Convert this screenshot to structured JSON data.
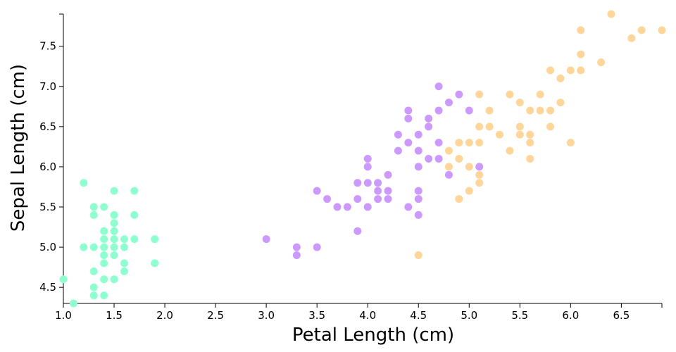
{
  "chart_data": {
    "type": "scatter",
    "xlabel": "Petal Length (cm)",
    "ylabel": "Sepal Length (cm)",
    "xlim": [
      1.0,
      6.9
    ],
    "ylim": [
      4.3,
      7.9
    ],
    "x_ticks": [
      "1.0",
      "1.5",
      "2.0",
      "2.5",
      "3.0",
      "3.5",
      "4.0",
      "4.5",
      "5.0",
      "5.5",
      "6.0",
      "6.5"
    ],
    "y_ticks": [
      "4.5",
      "5.0",
      "5.5",
      "6.0",
      "6.5",
      "7.0",
      "7.5"
    ],
    "grid": false,
    "legend": "none",
    "colors": [
      "#8fffd0",
      "#cc99ff",
      "#ffd699"
    ],
    "series": [
      {
        "color": "#8fffd0",
        "points": [
          [
            1.0,
            4.6
          ],
          [
            1.1,
            4.3
          ],
          [
            1.2,
            5.8
          ],
          [
            1.2,
            5.0
          ],
          [
            1.3,
            5.5
          ],
          [
            1.3,
            5.4
          ],
          [
            1.3,
            5.0
          ],
          [
            1.3,
            4.7
          ],
          [
            1.3,
            4.5
          ],
          [
            1.3,
            4.4
          ],
          [
            1.4,
            5.5
          ],
          [
            1.4,
            5.2
          ],
          [
            1.4,
            5.1
          ],
          [
            1.4,
            5.0
          ],
          [
            1.4,
            4.9
          ],
          [
            1.4,
            4.8
          ],
          [
            1.4,
            4.6
          ],
          [
            1.4,
            4.4
          ],
          [
            1.5,
            5.7
          ],
          [
            1.5,
            5.4
          ],
          [
            1.5,
            5.3
          ],
          [
            1.5,
            5.2
          ],
          [
            1.5,
            5.1
          ],
          [
            1.5,
            5.0
          ],
          [
            1.5,
            4.9
          ],
          [
            1.5,
            4.6
          ],
          [
            1.6,
            5.1
          ],
          [
            1.6,
            5.0
          ],
          [
            1.6,
            4.8
          ],
          [
            1.6,
            4.7
          ],
          [
            1.7,
            5.7
          ],
          [
            1.7,
            5.4
          ],
          [
            1.7,
            5.1
          ],
          [
            1.9,
            5.1
          ],
          [
            1.9,
            4.8
          ]
        ]
      },
      {
        "color": "#cc99ff",
        "points": [
          [
            3.0,
            5.1
          ],
          [
            3.3,
            5.0
          ],
          [
            3.3,
            4.9
          ],
          [
            3.5,
            5.7
          ],
          [
            3.5,
            5.0
          ],
          [
            3.6,
            5.6
          ],
          [
            3.7,
            5.5
          ],
          [
            3.8,
            5.5
          ],
          [
            3.9,
            5.8
          ],
          [
            3.9,
            5.6
          ],
          [
            3.9,
            5.2
          ],
          [
            4.0,
            6.1
          ],
          [
            4.0,
            6.0
          ],
          [
            4.0,
            5.8
          ],
          [
            4.0,
            5.5
          ],
          [
            4.1,
            5.8
          ],
          [
            4.1,
            5.7
          ],
          [
            4.1,
            5.6
          ],
          [
            4.2,
            5.9
          ],
          [
            4.2,
            5.7
          ],
          [
            4.2,
            5.6
          ],
          [
            4.3,
            6.4
          ],
          [
            4.3,
            6.2
          ],
          [
            4.4,
            6.7
          ],
          [
            4.4,
            6.6
          ],
          [
            4.4,
            6.3
          ],
          [
            4.4,
            5.5
          ],
          [
            4.5,
            6.4
          ],
          [
            4.5,
            6.2
          ],
          [
            4.5,
            6.0
          ],
          [
            4.5,
            5.7
          ],
          [
            4.5,
            5.6
          ],
          [
            4.5,
            5.4
          ],
          [
            4.6,
            6.6
          ],
          [
            4.6,
            6.5
          ],
          [
            4.6,
            6.1
          ],
          [
            4.7,
            7.0
          ],
          [
            4.7,
            6.7
          ],
          [
            4.7,
            6.3
          ],
          [
            4.7,
            6.1
          ],
          [
            4.8,
            6.8
          ],
          [
            4.8,
            5.9
          ],
          [
            4.9,
            6.9
          ],
          [
            5.0,
            6.7
          ],
          [
            5.1,
            6.0
          ]
        ]
      },
      {
        "color": "#ffd699",
        "points": [
          [
            4.5,
            4.9
          ],
          [
            4.8,
            6.2
          ],
          [
            4.8,
            6.0
          ],
          [
            4.9,
            6.3
          ],
          [
            4.9,
            6.1
          ],
          [
            4.9,
            5.6
          ],
          [
            5.0,
            6.3
          ],
          [
            5.0,
            6.0
          ],
          [
            5.0,
            5.7
          ],
          [
            5.1,
            6.9
          ],
          [
            5.1,
            6.5
          ],
          [
            5.1,
            6.3
          ],
          [
            5.1,
            5.9
          ],
          [
            5.1,
            5.8
          ],
          [
            5.2,
            6.7
          ],
          [
            5.2,
            6.5
          ],
          [
            5.3,
            6.4
          ],
          [
            5.4,
            6.9
          ],
          [
            5.4,
            6.2
          ],
          [
            5.5,
            6.8
          ],
          [
            5.5,
            6.5
          ],
          [
            5.5,
            6.4
          ],
          [
            5.6,
            6.7
          ],
          [
            5.6,
            6.4
          ],
          [
            5.6,
            6.3
          ],
          [
            5.6,
            6.1
          ],
          [
            5.7,
            6.9
          ],
          [
            5.7,
            6.7
          ],
          [
            5.8,
            7.2
          ],
          [
            5.8,
            6.7
          ],
          [
            5.8,
            6.5
          ],
          [
            5.9,
            7.1
          ],
          [
            5.9,
            6.8
          ],
          [
            6.0,
            7.2
          ],
          [
            6.0,
            6.3
          ],
          [
            6.1,
            7.7
          ],
          [
            6.1,
            7.4
          ],
          [
            6.1,
            7.2
          ],
          [
            6.3,
            7.3
          ],
          [
            6.4,
            7.9
          ],
          [
            6.6,
            7.6
          ],
          [
            6.7,
            7.7
          ],
          [
            6.9,
            7.7
          ]
        ]
      }
    ]
  }
}
